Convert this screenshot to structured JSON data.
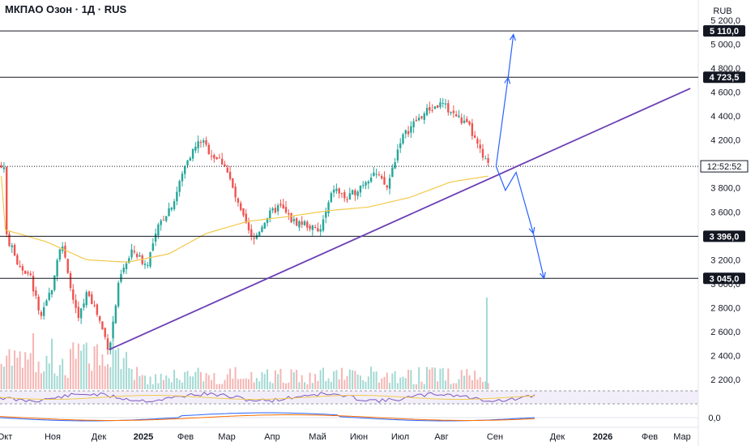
{
  "header": {
    "title": "МКПАО Озон · 1Д · RUS",
    "currency": "RUB"
  },
  "colors": {
    "up": "#26a69a",
    "down": "#ef5350",
    "ma": "#f2c94c",
    "trend": "#6c3fb5",
    "projection": "#2962ff",
    "level": "#131722"
  },
  "chart_data": {
    "type": "candlestick",
    "y_axis": {
      "min": 2120,
      "max": 5300,
      "ticks": [
        "2 200,0",
        "2 400,0",
        "2 600,0",
        "2 800,0",
        "3 000,0",
        "3 200,0",
        "3 400,0",
        "3 600,0",
        "3 800,0",
        "4 000,0",
        "4 200,0",
        "4 400,0",
        "4 600,0",
        "4 800,0",
        "5 000,0",
        "5 200,0"
      ],
      "tick_values": [
        2200,
        2400,
        2600,
        2800,
        3000,
        3200,
        3400,
        3600,
        3800,
        4000,
        4200,
        4400,
        4600,
        4800,
        5000,
        5200
      ]
    },
    "x_axis": {
      "labels": [
        "Окт",
        "Ноя",
        "Дек",
        "2025",
        "Фев",
        "Мар",
        "Апр",
        "Май",
        "Июн",
        "Июл",
        "Авг",
        "Сен",
        "Дек",
        "2026",
        "Фев",
        "Мар"
      ],
      "bold_labels": [
        "2025",
        "2026"
      ]
    },
    "horizontal_levels": [
      {
        "value": 5110,
        "label": "5 110,0"
      },
      {
        "value": 4723.5,
        "label": "4 723,5"
      },
      {
        "value": 3396,
        "label": "3 396,0"
      },
      {
        "value": 3045,
        "label": "3 045,0"
      }
    ],
    "current_price": {
      "value": 3980,
      "label": "12:52:52"
    },
    "indicator_axis_label": "0,0",
    "price_path": [
      {
        "date": "2024-10-01",
        "close": 3420
      },
      {
        "date": "2024-10-10",
        "close": 3180
      },
      {
        "date": "2024-10-20",
        "close": 3050
      },
      {
        "date": "2024-10-28",
        "close": 2700
      },
      {
        "date": "2024-11-05",
        "close": 2980
      },
      {
        "date": "2024-11-12",
        "close": 3380
      },
      {
        "date": "2024-11-18",
        "close": 3000
      },
      {
        "date": "2024-11-25",
        "close": 2700
      },
      {
        "date": "2024-12-02",
        "close": 2950
      },
      {
        "date": "2024-12-10",
        "close": 2720
      },
      {
        "date": "2024-12-18",
        "close": 2450
      },
      {
        "date": "2024-12-26",
        "close": 3050
      },
      {
        "date": "2025-01-05",
        "close": 3280
      },
      {
        "date": "2025-01-15",
        "close": 3150
      },
      {
        "date": "2025-01-25",
        "close": 3500
      },
      {
        "date": "2025-02-05",
        "close": 3700
      },
      {
        "date": "2025-02-15",
        "close": 4050
      },
      {
        "date": "2025-02-25",
        "close": 4200
      },
      {
        "date": "2025-03-05",
        "close": 4080
      },
      {
        "date": "2025-03-15",
        "close": 4000
      },
      {
        "date": "2025-03-25",
        "close": 3650
      },
      {
        "date": "2025-04-05",
        "close": 3350
      },
      {
        "date": "2025-04-15",
        "close": 3550
      },
      {
        "date": "2025-04-25",
        "close": 3650
      },
      {
        "date": "2025-05-05",
        "close": 3520
      },
      {
        "date": "2025-05-15",
        "close": 3500
      },
      {
        "date": "2025-05-25",
        "close": 3420
      },
      {
        "date": "2025-06-05",
        "close": 3800
      },
      {
        "date": "2025-06-15",
        "close": 3700
      },
      {
        "date": "2025-06-25",
        "close": 3820
      },
      {
        "date": "2025-07-05",
        "close": 3930
      },
      {
        "date": "2025-07-15",
        "close": 3800
      },
      {
        "date": "2025-07-25",
        "close": 4200
      },
      {
        "date": "2025-08-05",
        "close": 4350
      },
      {
        "date": "2025-08-15",
        "close": 4450
      },
      {
        "date": "2025-08-25",
        "close": 4500
      },
      {
        "date": "2025-09-05",
        "close": 4400
      },
      {
        "date": "2025-09-15",
        "close": 4300
      },
      {
        "date": "2025-09-25",
        "close": 4050
      },
      {
        "date": "2025-09-30",
        "close": 3970
      }
    ],
    "moving_average": [
      {
        "date": "2024-10-01",
        "value": 3450
      },
      {
        "date": "2024-11-01",
        "value": 3350
      },
      {
        "date": "2024-12-01",
        "value": 3200
      },
      {
        "date": "2025-01-01",
        "value": 3180
      },
      {
        "date": "2025-02-01",
        "value": 3250
      },
      {
        "date": "2025-03-01",
        "value": 3420
      },
      {
        "date": "2025-04-01",
        "value": 3520
      },
      {
        "date": "2025-05-01",
        "value": 3560
      },
      {
        "date": "2025-06-01",
        "value": 3610
      },
      {
        "date": "2025-07-01",
        "value": 3640
      },
      {
        "date": "2025-08-01",
        "value": 3720
      },
      {
        "date": "2025-09-01",
        "value": 3850
      },
      {
        "date": "2025-09-30",
        "value": 3900
      }
    ],
    "trendline": [
      {
        "date": "2024-12-18",
        "value": 2450
      },
      {
        "date": "2026-02-28",
        "value": 4630
      }
    ],
    "projection_up": [
      {
        "date": "2025-10-05",
        "value": 3980
      },
      {
        "date": "2025-10-14",
        "value": 4720
      },
      {
        "date": "2025-10-18",
        "value": 5080
      }
    ],
    "projection_down": [
      {
        "date": "2025-10-05",
        "value": 3980
      },
      {
        "date": "2025-10-12",
        "value": 3780
      },
      {
        "date": "2025-10-20",
        "value": 3930
      },
      {
        "date": "2025-11-02",
        "value": 3420
      },
      {
        "date": "2025-11-10",
        "value": 3045
      }
    ],
    "legend": "none",
    "grid": false
  }
}
